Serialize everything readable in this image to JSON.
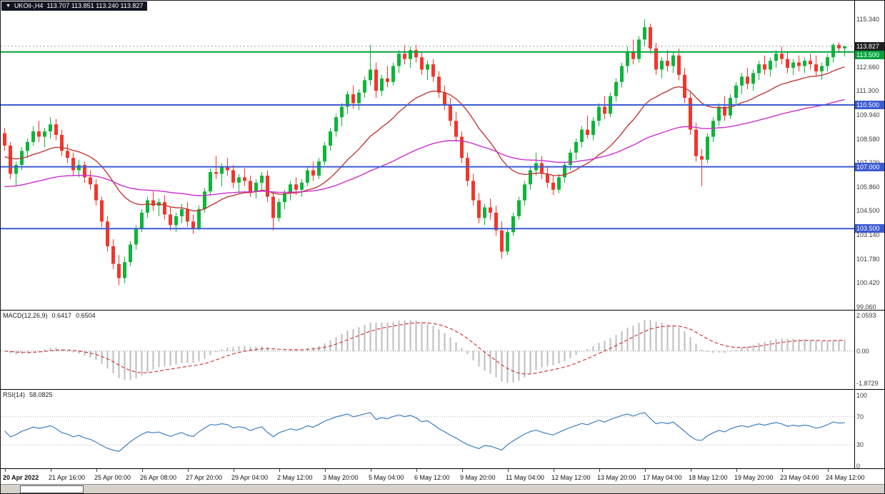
{
  "quote_bar": {
    "dropdown_icon": "▼",
    "symbol_timeframe": "UKOil-,H4",
    "ohlc": "113.707 113.851 113.240 113.827"
  },
  "chart_data": {
    "type": "candlestick",
    "symbol": "UKOil-",
    "timeframe": "H4",
    "ylim": [
      98.9,
      116.4
    ],
    "price_axis_labels": [
      "115.340",
      "112.660",
      "111.300",
      "109.940",
      "108.580",
      "107.220",
      "105.860",
      "104.500",
      "103.140",
      "101.780",
      "100.420",
      "99.060"
    ],
    "bid": {
      "price": 113.827,
      "label": "113.827",
      "badge_color": "#1f1f1f"
    },
    "hlines": [
      {
        "price": 113.5,
        "label": "113.500",
        "color": "#00a33c"
      },
      {
        "price": 110.5,
        "label": "110.500",
        "color": "#3c5bd2"
      },
      {
        "price": 107.0,
        "label": "107.000",
        "color": "#3c5bd2"
      },
      {
        "price": 103.5,
        "label": "103.500",
        "color": "#3c5bd2"
      }
    ],
    "time_axis_labels": [
      "20 Apr 2022",
      "21 Apr 16:00",
      "25 Apr 00:00",
      "26 Apr 08:00",
      "27 Apr 20:00",
      "29 Apr 04:00",
      "2 May 12:00",
      "3 May 20:00",
      "5 May 04:00",
      "6 May 12:00",
      "9 May 20:00",
      "11 May 04:00",
      "12 May 12:00",
      "13 May 20:00",
      "17 May 04:00",
      "18 May 12:00",
      "19 May 20:00",
      "23 May 04:00",
      "24 May 12:00"
    ],
    "bars_per_label": 8,
    "up_color": "#0db53a",
    "down_color": "#f2362b",
    "ma_lines": [
      {
        "name": "ma-fast-red",
        "color": "#c03a3a",
        "period": 21,
        "seed": 107.5
      },
      {
        "name": "ma-slow-magenta",
        "color": "#cb2fcb",
        "period": 72,
        "seed": 105.8
      }
    ],
    "candles": [
      [
        108.9,
        109.2,
        107.9,
        108.2
      ],
      [
        108.2,
        108.4,
        106.3,
        106.6
      ],
      [
        106.6,
        107.3,
        105.9,
        107.1
      ],
      [
        107.1,
        108.1,
        106.8,
        107.9
      ],
      [
        107.9,
        108.6,
        107.5,
        108.4
      ],
      [
        108.4,
        109.3,
        108.2,
        109.0
      ],
      [
        109.0,
        109.6,
        108.4,
        108.7
      ],
      [
        108.7,
        109.2,
        108.1,
        109.0
      ],
      [
        109.0,
        109.8,
        108.6,
        109.4
      ],
      [
        109.4,
        109.7,
        108.5,
        108.8
      ],
      [
        108.8,
        109.1,
        107.6,
        107.9
      ],
      [
        107.9,
        108.3,
        107.2,
        107.5
      ],
      [
        107.5,
        107.8,
        106.5,
        106.8
      ],
      [
        106.8,
        107.4,
        106.4,
        107.1
      ],
      [
        107.1,
        107.3,
        106.1,
        106.4
      ],
      [
        106.4,
        106.8,
        105.7,
        106.0
      ],
      [
        106.0,
        106.3,
        104.8,
        105.1
      ],
      [
        105.1,
        105.3,
        103.6,
        103.9
      ],
      [
        103.9,
        104.2,
        102.2,
        102.5
      ],
      [
        102.5,
        102.9,
        101.2,
        101.5
      ],
      [
        101.5,
        102.0,
        100.3,
        100.7
      ],
      [
        100.7,
        101.9,
        100.4,
        101.6
      ],
      [
        101.6,
        102.8,
        101.4,
        102.6
      ],
      [
        102.6,
        103.7,
        102.3,
        103.5
      ],
      [
        103.5,
        104.6,
        103.3,
        104.4
      ],
      [
        104.4,
        105.3,
        104.1,
        105.1
      ],
      [
        105.1,
        105.6,
        104.5,
        104.8
      ],
      [
        104.8,
        105.2,
        104.2,
        105.0
      ],
      [
        105.0,
        105.4,
        104.0,
        104.3
      ],
      [
        104.3,
        104.7,
        103.4,
        103.7
      ],
      [
        103.7,
        104.4,
        103.3,
        104.2
      ],
      [
        104.2,
        104.9,
        103.8,
        104.6
      ],
      [
        104.6,
        105.0,
        103.6,
        103.9
      ],
      [
        103.9,
        104.3,
        103.2,
        103.5
      ],
      [
        103.5,
        104.8,
        103.4,
        104.6
      ],
      [
        104.6,
        105.8,
        104.4,
        105.6
      ],
      [
        105.6,
        106.9,
        105.4,
        106.7
      ],
      [
        106.7,
        107.6,
        106.3,
        106.6
      ],
      [
        106.6,
        107.2,
        105.9,
        107.0
      ],
      [
        107.0,
        107.5,
        106.5,
        106.8
      ],
      [
        106.8,
        107.1,
        105.8,
        106.1
      ],
      [
        106.1,
        106.6,
        105.5,
        106.4
      ],
      [
        106.4,
        106.9,
        105.9,
        106.2
      ],
      [
        106.2,
        106.5,
        105.3,
        105.6
      ],
      [
        105.6,
        106.3,
        105.2,
        106.1
      ],
      [
        106.1,
        106.7,
        105.7,
        106.5
      ],
      [
        106.5,
        106.8,
        105.0,
        105.3
      ],
      [
        105.3,
        105.6,
        103.4,
        104.1
      ],
      [
        104.1,
        105.2,
        103.9,
        105.0
      ],
      [
        105.0,
        105.7,
        104.6,
        105.5
      ],
      [
        105.5,
        106.2,
        105.1,
        106.0
      ],
      [
        106.0,
        106.4,
        105.4,
        105.7
      ],
      [
        105.7,
        106.3,
        105.3,
        106.1
      ],
      [
        106.1,
        107.0,
        105.9,
        106.8
      ],
      [
        106.8,
        107.3,
        106.2,
        106.5
      ],
      [
        106.5,
        107.5,
        106.3,
        107.3
      ],
      [
        107.3,
        108.4,
        107.1,
        108.2
      ],
      [
        108.2,
        109.2,
        107.9,
        109.0
      ],
      [
        109.0,
        110.0,
        108.7,
        109.8
      ],
      [
        109.8,
        110.6,
        109.3,
        110.4
      ],
      [
        110.4,
        111.3,
        110.0,
        111.1
      ],
      [
        111.1,
        111.6,
        110.3,
        110.6
      ],
      [
        110.6,
        111.4,
        110.2,
        111.2
      ],
      [
        111.2,
        112.1,
        110.9,
        111.9
      ],
      [
        111.9,
        113.9,
        111.6,
        112.5
      ],
      [
        112.5,
        112.9,
        110.9,
        111.3
      ],
      [
        111.3,
        112.2,
        111.0,
        112.0
      ],
      [
        112.0,
        112.7,
        111.5,
        111.8
      ],
      [
        111.8,
        112.9,
        111.6,
        112.7
      ],
      [
        112.7,
        113.6,
        112.3,
        113.4
      ],
      [
        113.4,
        113.9,
        112.8,
        113.1
      ],
      [
        113.1,
        113.8,
        112.6,
        113.6
      ],
      [
        113.6,
        113.9,
        112.9,
        113.2
      ],
      [
        113.2,
        113.5,
        112.2,
        112.5
      ],
      [
        112.5,
        113.0,
        111.9,
        112.8
      ],
      [
        112.8,
        113.1,
        111.8,
        112.1
      ],
      [
        112.1,
        112.4,
        110.9,
        111.2
      ],
      [
        111.2,
        111.6,
        110.2,
        110.5
      ],
      [
        110.5,
        110.9,
        109.3,
        109.6
      ],
      [
        109.6,
        110.1,
        108.4,
        108.7
      ],
      [
        108.7,
        109.0,
        107.2,
        107.5
      ],
      [
        107.5,
        107.8,
        105.9,
        106.2
      ],
      [
        106.2,
        106.6,
        104.8,
        105.1
      ],
      [
        105.1,
        105.5,
        103.8,
        104.1
      ],
      [
        104.1,
        104.9,
        103.7,
        104.7
      ],
      [
        104.7,
        105.2,
        104.0,
        104.4
      ],
      [
        104.4,
        104.8,
        103.1,
        103.4
      ],
      [
        103.4,
        103.9,
        101.8,
        102.2
      ],
      [
        102.2,
        103.5,
        102.0,
        103.3
      ],
      [
        103.3,
        104.4,
        103.1,
        104.2
      ],
      [
        104.2,
        105.3,
        104.0,
        105.1
      ],
      [
        105.1,
        106.2,
        104.8,
        106.0
      ],
      [
        106.0,
        107.0,
        105.7,
        106.8
      ],
      [
        106.8,
        107.8,
        106.5,
        107.2
      ],
      [
        107.2,
        107.6,
        106.3,
        106.6
      ],
      [
        106.6,
        107.0,
        105.8,
        106.1
      ],
      [
        106.1,
        106.5,
        105.4,
        105.7
      ],
      [
        105.7,
        106.6,
        105.5,
        106.4
      ],
      [
        106.4,
        107.3,
        106.1,
        107.1
      ],
      [
        107.1,
        108.0,
        106.8,
        107.8
      ],
      [
        107.8,
        108.6,
        107.4,
        108.4
      ],
      [
        108.4,
        109.3,
        108.1,
        109.1
      ],
      [
        109.1,
        109.9,
        108.6,
        108.8
      ],
      [
        108.8,
        109.8,
        108.5,
        109.6
      ],
      [
        109.6,
        110.6,
        109.3,
        110.4
      ],
      [
        110.4,
        111.0,
        109.7,
        110.0
      ],
      [
        110.0,
        111.2,
        109.8,
        111.0
      ],
      [
        111.0,
        112.0,
        110.7,
        111.8
      ],
      [
        111.8,
        112.9,
        111.5,
        112.7
      ],
      [
        112.7,
        113.8,
        112.3,
        113.5
      ],
      [
        113.5,
        114.2,
        112.8,
        113.1
      ],
      [
        113.1,
        114.4,
        112.9,
        114.2
      ],
      [
        114.2,
        115.34,
        113.8,
        114.9
      ],
      [
        114.9,
        115.1,
        113.4,
        113.7
      ],
      [
        113.7,
        114.0,
        112.2,
        112.5
      ],
      [
        112.5,
        113.2,
        112.0,
        113.0
      ],
      [
        113.0,
        113.6,
        112.4,
        112.7
      ],
      [
        112.7,
        113.5,
        112.3,
        113.3
      ],
      [
        113.3,
        113.7,
        111.9,
        112.2
      ],
      [
        112.2,
        112.6,
        110.6,
        110.9
      ],
      [
        110.9,
        111.2,
        108.8,
        109.1
      ],
      [
        109.1,
        109.5,
        107.3,
        107.6
      ],
      [
        107.6,
        108.0,
        105.9,
        107.4
      ],
      [
        107.4,
        108.9,
        107.2,
        108.7
      ],
      [
        108.7,
        109.8,
        108.4,
        109.6
      ],
      [
        109.6,
        110.6,
        109.3,
        110.4
      ],
      [
        110.4,
        111.0,
        109.6,
        109.9
      ],
      [
        109.9,
        111.1,
        109.7,
        110.9
      ],
      [
        110.9,
        111.8,
        110.5,
        111.6
      ],
      [
        111.6,
        112.3,
        111.1,
        112.1
      ],
      [
        112.1,
        112.6,
        111.4,
        111.7
      ],
      [
        111.7,
        112.5,
        111.3,
        112.3
      ],
      [
        112.3,
        113.0,
        111.9,
        112.8
      ],
      [
        112.8,
        113.3,
        112.2,
        112.5
      ],
      [
        112.5,
        113.2,
        112.1,
        113.0
      ],
      [
        113.0,
        113.6,
        112.6,
        113.4
      ],
      [
        113.4,
        113.8,
        112.8,
        113.1
      ],
      [
        113.1,
        113.5,
        112.3,
        112.6
      ],
      [
        112.6,
        113.1,
        112.2,
        112.9
      ],
      [
        112.9,
        113.3,
        112.4,
        112.7
      ],
      [
        112.7,
        113.2,
        112.3,
        113.0
      ],
      [
        113.0,
        113.4,
        112.5,
        112.8
      ],
      [
        112.8,
        113.3,
        112.1,
        112.4
      ],
      [
        112.4,
        112.9,
        111.9,
        112.7
      ],
      [
        112.7,
        113.4,
        112.4,
        113.2
      ],
      [
        113.2,
        114.0,
        112.9,
        113.9
      ],
      [
        113.9,
        114.05,
        113.5,
        113.707
      ],
      [
        113.707,
        113.851,
        113.24,
        113.827
      ]
    ],
    "indicators": {
      "macd": {
        "label": "MACD(12,26,9)",
        "value_main": "0.6417",
        "value_signal": "0.6504",
        "fast": 12,
        "slow": 26,
        "signal": 9,
        "axis_labels": [
          "2.0593",
          "0.00",
          "-1.8729"
        ],
        "axis_values": [
          2.0593,
          0,
          -1.8729
        ],
        "ylim": [
          -2.2,
          2.35
        ],
        "hist_color": "#bcbcbc",
        "signal_color": "#d23b3b"
      },
      "rsi": {
        "label": "RSI(14)",
        "value": "58.0825",
        "period": 14,
        "axis_labels": [
          "100",
          "70",
          "30",
          "0"
        ],
        "axis_values": [
          100,
          70,
          30,
          0
        ],
        "levels": [
          70,
          30
        ],
        "color": "#3e7fc1"
      }
    }
  }
}
